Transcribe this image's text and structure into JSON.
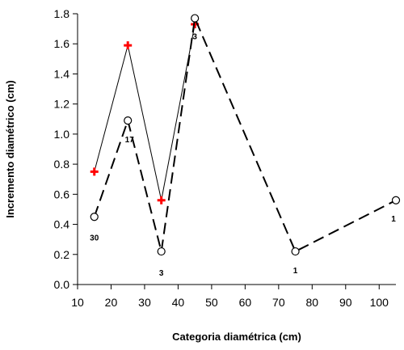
{
  "chart_data": {
    "type": "line",
    "xlabel": "Categoria diamétrica (cm)",
    "ylabel": "Incremento diamétrico (cm)",
    "xlim": [
      10,
      105
    ],
    "ylim": [
      0,
      1.8
    ],
    "x_ticks": [
      10,
      20,
      30,
      40,
      50,
      60,
      70,
      80,
      90,
      100
    ],
    "y_ticks": [
      "0.0",
      "0.2",
      "0.4",
      "0.6",
      "0.8",
      "1.0",
      "1.2",
      "1.4",
      "1.6",
      "1.8"
    ],
    "grid": false,
    "legend": "none",
    "series": [
      {
        "marker": "cross",
        "line_style": "solid",
        "color": "#ff0000",
        "line_color": "#000000",
        "points": [
          {
            "x": 15,
            "y": 0.75
          },
          {
            "x": 25,
            "y": 1.59
          },
          {
            "x": 35,
            "y": 0.56
          },
          {
            "x": 45,
            "y": 1.73
          }
        ]
      },
      {
        "marker": "open-circle",
        "line_style": "dashed",
        "color": "#000000",
        "line_color": "#000000",
        "points": [
          {
            "x": 15,
            "y": 0.45,
            "label": "30"
          },
          {
            "x": 25,
            "y": 1.09,
            "label": "17"
          },
          {
            "x": 35,
            "y": 0.22,
            "label": "3"
          },
          {
            "x": 45,
            "y": 1.77,
            "label": "3"
          },
          {
            "x": 75,
            "y": 0.22,
            "label": "1"
          },
          {
            "x": 105,
            "y": 0.56,
            "label": "1"
          }
        ]
      }
    ]
  }
}
